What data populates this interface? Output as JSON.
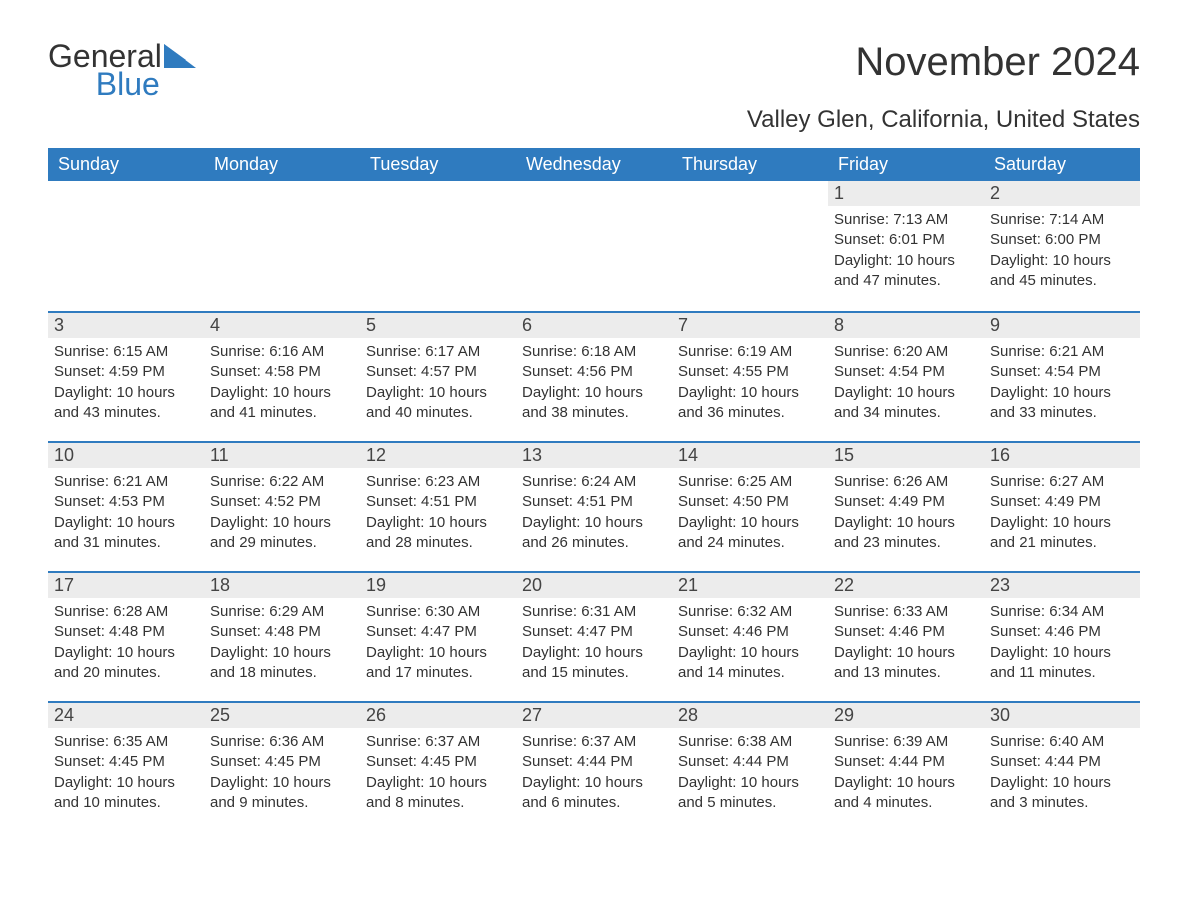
{
  "brand": {
    "word1": "General",
    "word2": "Blue",
    "icon_color": "#2f7bbf"
  },
  "title": "November 2024",
  "location": "Valley Glen, California, United States",
  "theme": {
    "header_bg": "#2f7bbf",
    "header_text": "#ffffff",
    "daynum_bg": "#ececec",
    "daynum_border": "#2f7bbf",
    "body_text": "#333333",
    "page_bg": "#ffffff",
    "title_fontsize": 40,
    "location_fontsize": 24,
    "th_fontsize": 18,
    "daynum_fontsize": 18,
    "body_fontsize": 15
  },
  "weekdays": [
    "Sunday",
    "Monday",
    "Tuesday",
    "Wednesday",
    "Thursday",
    "Friday",
    "Saturday"
  ],
  "weeks": [
    [
      null,
      null,
      null,
      null,
      null,
      {
        "n": "1",
        "sunrise": "7:13 AM",
        "sunset": "6:01 PM",
        "daylight": "10 hours and 47 minutes."
      },
      {
        "n": "2",
        "sunrise": "7:14 AM",
        "sunset": "6:00 PM",
        "daylight": "10 hours and 45 minutes."
      }
    ],
    [
      {
        "n": "3",
        "sunrise": "6:15 AM",
        "sunset": "4:59 PM",
        "daylight": "10 hours and 43 minutes."
      },
      {
        "n": "4",
        "sunrise": "6:16 AM",
        "sunset": "4:58 PM",
        "daylight": "10 hours and 41 minutes."
      },
      {
        "n": "5",
        "sunrise": "6:17 AM",
        "sunset": "4:57 PM",
        "daylight": "10 hours and 40 minutes."
      },
      {
        "n": "6",
        "sunrise": "6:18 AM",
        "sunset": "4:56 PM",
        "daylight": "10 hours and 38 minutes."
      },
      {
        "n": "7",
        "sunrise": "6:19 AM",
        "sunset": "4:55 PM",
        "daylight": "10 hours and 36 minutes."
      },
      {
        "n": "8",
        "sunrise": "6:20 AM",
        "sunset": "4:54 PM",
        "daylight": "10 hours and 34 minutes."
      },
      {
        "n": "9",
        "sunrise": "6:21 AM",
        "sunset": "4:54 PM",
        "daylight": "10 hours and 33 minutes."
      }
    ],
    [
      {
        "n": "10",
        "sunrise": "6:21 AM",
        "sunset": "4:53 PM",
        "daylight": "10 hours and 31 minutes."
      },
      {
        "n": "11",
        "sunrise": "6:22 AM",
        "sunset": "4:52 PM",
        "daylight": "10 hours and 29 minutes."
      },
      {
        "n": "12",
        "sunrise": "6:23 AM",
        "sunset": "4:51 PM",
        "daylight": "10 hours and 28 minutes."
      },
      {
        "n": "13",
        "sunrise": "6:24 AM",
        "sunset": "4:51 PM",
        "daylight": "10 hours and 26 minutes."
      },
      {
        "n": "14",
        "sunrise": "6:25 AM",
        "sunset": "4:50 PM",
        "daylight": "10 hours and 24 minutes."
      },
      {
        "n": "15",
        "sunrise": "6:26 AM",
        "sunset": "4:49 PM",
        "daylight": "10 hours and 23 minutes."
      },
      {
        "n": "16",
        "sunrise": "6:27 AM",
        "sunset": "4:49 PM",
        "daylight": "10 hours and 21 minutes."
      }
    ],
    [
      {
        "n": "17",
        "sunrise": "6:28 AM",
        "sunset": "4:48 PM",
        "daylight": "10 hours and 20 minutes."
      },
      {
        "n": "18",
        "sunrise": "6:29 AM",
        "sunset": "4:48 PM",
        "daylight": "10 hours and 18 minutes."
      },
      {
        "n": "19",
        "sunrise": "6:30 AM",
        "sunset": "4:47 PM",
        "daylight": "10 hours and 17 minutes."
      },
      {
        "n": "20",
        "sunrise": "6:31 AM",
        "sunset": "4:47 PM",
        "daylight": "10 hours and 15 minutes."
      },
      {
        "n": "21",
        "sunrise": "6:32 AM",
        "sunset": "4:46 PM",
        "daylight": "10 hours and 14 minutes."
      },
      {
        "n": "22",
        "sunrise": "6:33 AM",
        "sunset": "4:46 PM",
        "daylight": "10 hours and 13 minutes."
      },
      {
        "n": "23",
        "sunrise": "6:34 AM",
        "sunset": "4:46 PM",
        "daylight": "10 hours and 11 minutes."
      }
    ],
    [
      {
        "n": "24",
        "sunrise": "6:35 AM",
        "sunset": "4:45 PM",
        "daylight": "10 hours and 10 minutes."
      },
      {
        "n": "25",
        "sunrise": "6:36 AM",
        "sunset": "4:45 PM",
        "daylight": "10 hours and 9 minutes."
      },
      {
        "n": "26",
        "sunrise": "6:37 AM",
        "sunset": "4:45 PM",
        "daylight": "10 hours and 8 minutes."
      },
      {
        "n": "27",
        "sunrise": "6:37 AM",
        "sunset": "4:44 PM",
        "daylight": "10 hours and 6 minutes."
      },
      {
        "n": "28",
        "sunrise": "6:38 AM",
        "sunset": "4:44 PM",
        "daylight": "10 hours and 5 minutes."
      },
      {
        "n": "29",
        "sunrise": "6:39 AM",
        "sunset": "4:44 PM",
        "daylight": "10 hours and 4 minutes."
      },
      {
        "n": "30",
        "sunrise": "6:40 AM",
        "sunset": "4:44 PM",
        "daylight": "10 hours and 3 minutes."
      }
    ]
  ],
  "labels": {
    "sunrise": "Sunrise:",
    "sunset": "Sunset:",
    "daylight": "Daylight:"
  }
}
